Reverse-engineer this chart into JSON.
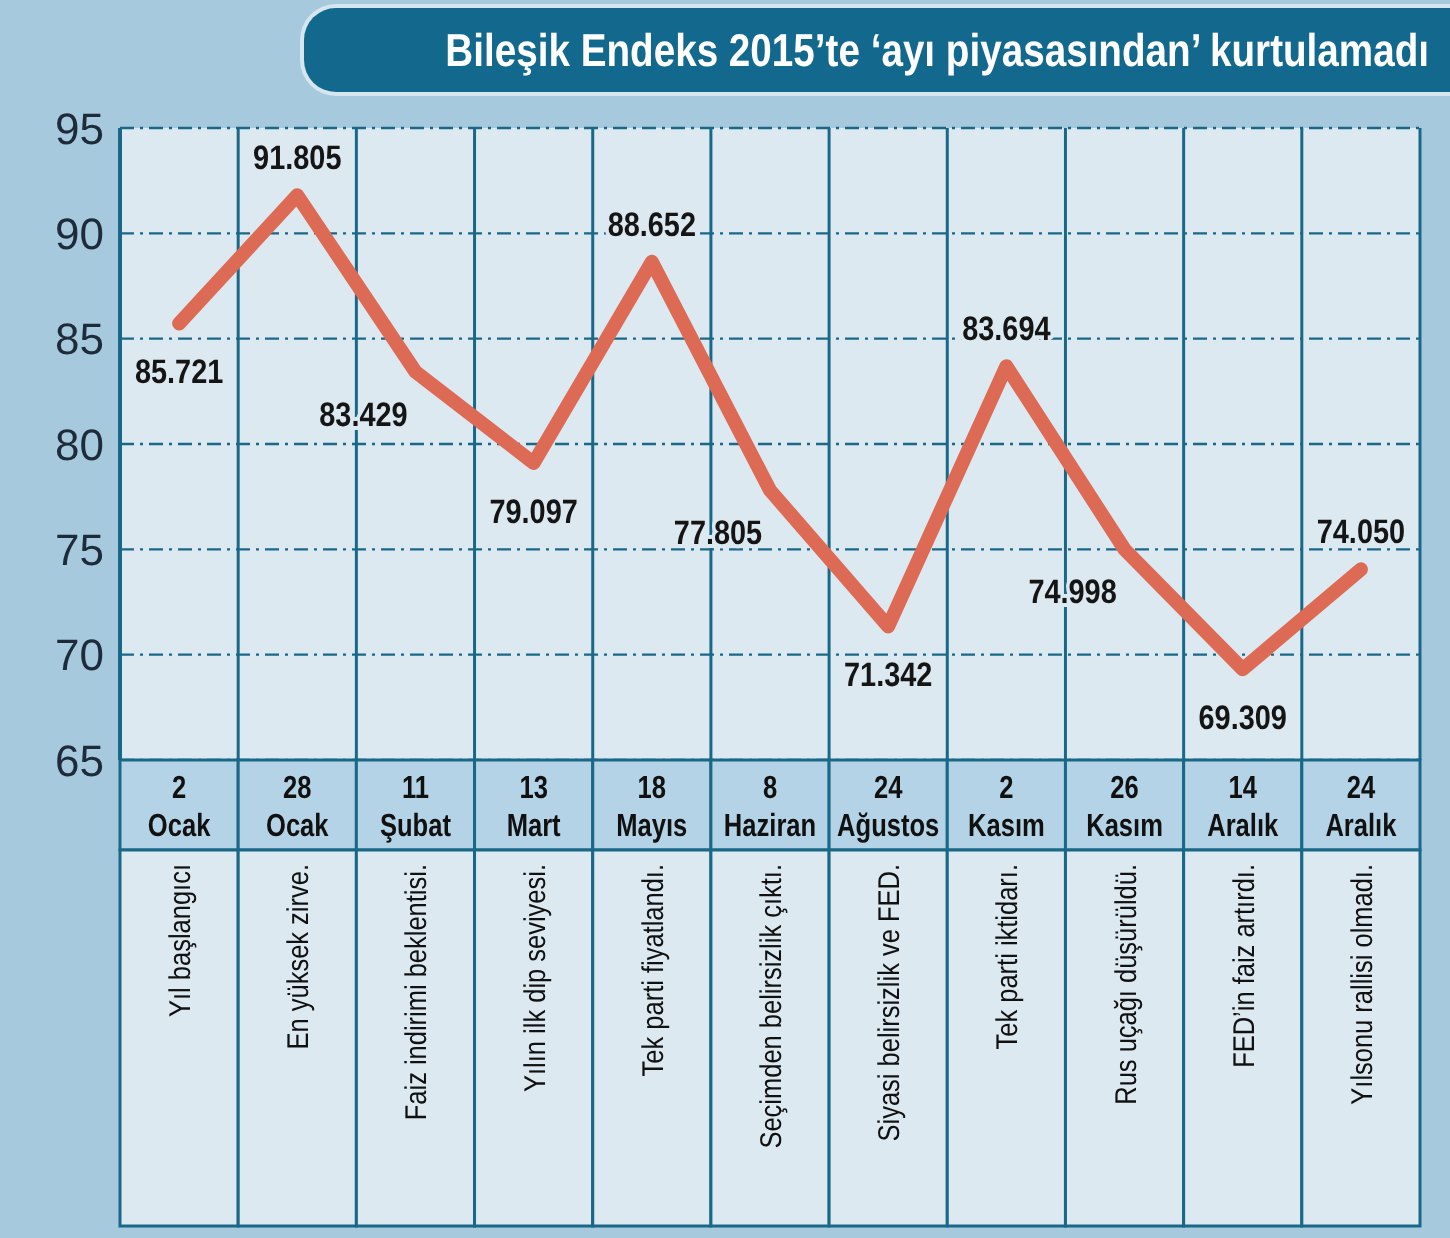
{
  "chart_data": {
    "type": "line",
    "title": "Bileşik Endeks 2015’te ‘ayı piyasasından’ kurtulamadı",
    "categories": [
      "2 Ocak",
      "28 Ocak",
      "11 Şubat",
      "13 Mart",
      "18 Mayıs",
      "8 Haziran",
      "24 Ağustos",
      "2 Kasım",
      "26 Kasım",
      "14 Aralık",
      "24 Aralık"
    ],
    "values": [
      85.721,
      91.805,
      83.429,
      79.097,
      88.652,
      77.805,
      71.342,
      83.694,
      74.998,
      69.309,
      74.05
    ],
    "value_labels": [
      "85.721",
      "91.805",
      "83.429",
      "79.097",
      "88.652",
      "77.805",
      "71.342",
      "83.694",
      "74.998",
      "69.309",
      "74.050"
    ],
    "color": "#dd6a55",
    "ylim": [
      65,
      95
    ],
    "yticks": [
      65,
      70,
      75,
      80,
      85,
      90,
      95
    ],
    "grid": true,
    "annotations": [
      "Yıl başlangıcı",
      "En yüksek zirve.",
      "Faiz indirimi beklentisi.",
      "Yılın ilk dip seviyesi.",
      "Tek parti fiyatlandı.",
      "Seçimden belirsizlik çıktı.",
      "Siyasi belirsizlik ve FED.",
      "Tek parti iktidarı.",
      "Rus uçağı düşürüldü.",
      "FED’in faiz artırdı.",
      "Yılsonu rallisi olmadı."
    ]
  }
}
